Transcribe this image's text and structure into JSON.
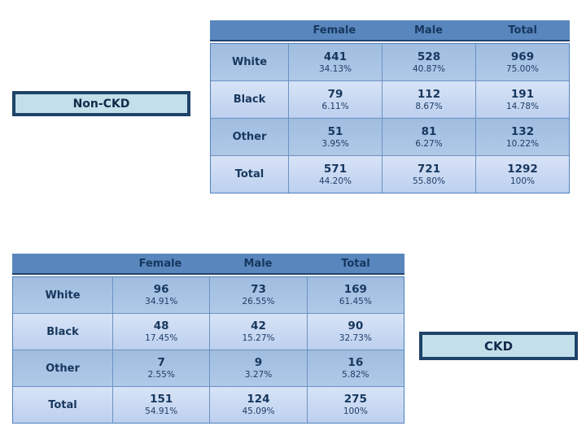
{
  "slide": {
    "background": "#FFFFFF",
    "colors": {
      "header_bg": "#5886BD",
      "band_medium": "#A6C2E3",
      "band_light": "#CCDCF3",
      "grid_border": "#6B92C3",
      "header_border": "#24426F",
      "text": "#17375E",
      "box_fill": "#C3DFEA",
      "box_border": "#1F4369"
    },
    "labels": {
      "non_ckd": "Non-CKD",
      "ckd": "CKD"
    },
    "tables": [
      {
        "name": "non-ckd-table",
        "columns": [
          "Female",
          "Male",
          "Total"
        ],
        "rows": [
          {
            "label": "White",
            "cells": [
              {
                "count": "441",
                "pct": "34.13%"
              },
              {
                "count": "528",
                "pct": "40.87%"
              },
              {
                "count": "969",
                "pct": "75.00%"
              }
            ]
          },
          {
            "label": "Black",
            "cells": [
              {
                "count": "79",
                "pct": "6.11%"
              },
              {
                "count": "112",
                "pct": "8.67%"
              },
              {
                "count": "191",
                "pct": "14.78%"
              }
            ]
          },
          {
            "label": "Other",
            "cells": [
              {
                "count": "51",
                "pct": "3.95%"
              },
              {
                "count": "81",
                "pct": "6.27%"
              },
              {
                "count": "132",
                "pct": "10.22%"
              }
            ]
          },
          {
            "label": "Total",
            "cells": [
              {
                "count": "571",
                "pct": "44.20%"
              },
              {
                "count": "721",
                "pct": "55.80%"
              },
              {
                "count": "1292",
                "pct": "100%"
              }
            ]
          }
        ]
      },
      {
        "name": "ckd-table",
        "columns": [
          "Female",
          "Male",
          "Total"
        ],
        "rows": [
          {
            "label": "White",
            "cells": [
              {
                "count": "96",
                "pct": "34.91%"
              },
              {
                "count": "73",
                "pct": "26.55%"
              },
              {
                "count": "169",
                "pct": "61.45%"
              }
            ]
          },
          {
            "label": "Black",
            "cells": [
              {
                "count": "48",
                "pct": "17.45%"
              },
              {
                "count": "42",
                "pct": "15.27%"
              },
              {
                "count": "90",
                "pct": "32.73%"
              }
            ]
          },
          {
            "label": "Other",
            "cells": [
              {
                "count": "7",
                "pct": "2.55%"
              },
              {
                "count": "9",
                "pct": "3.27%"
              },
              {
                "count": "16",
                "pct": "5.82%"
              }
            ]
          },
          {
            "label": "Total",
            "cells": [
              {
                "count": "151",
                "pct": "54.91%"
              },
              {
                "count": "124",
                "pct": "45.09%"
              },
              {
                "count": "275",
                "pct": "100%"
              }
            ]
          }
        ]
      }
    ]
  }
}
